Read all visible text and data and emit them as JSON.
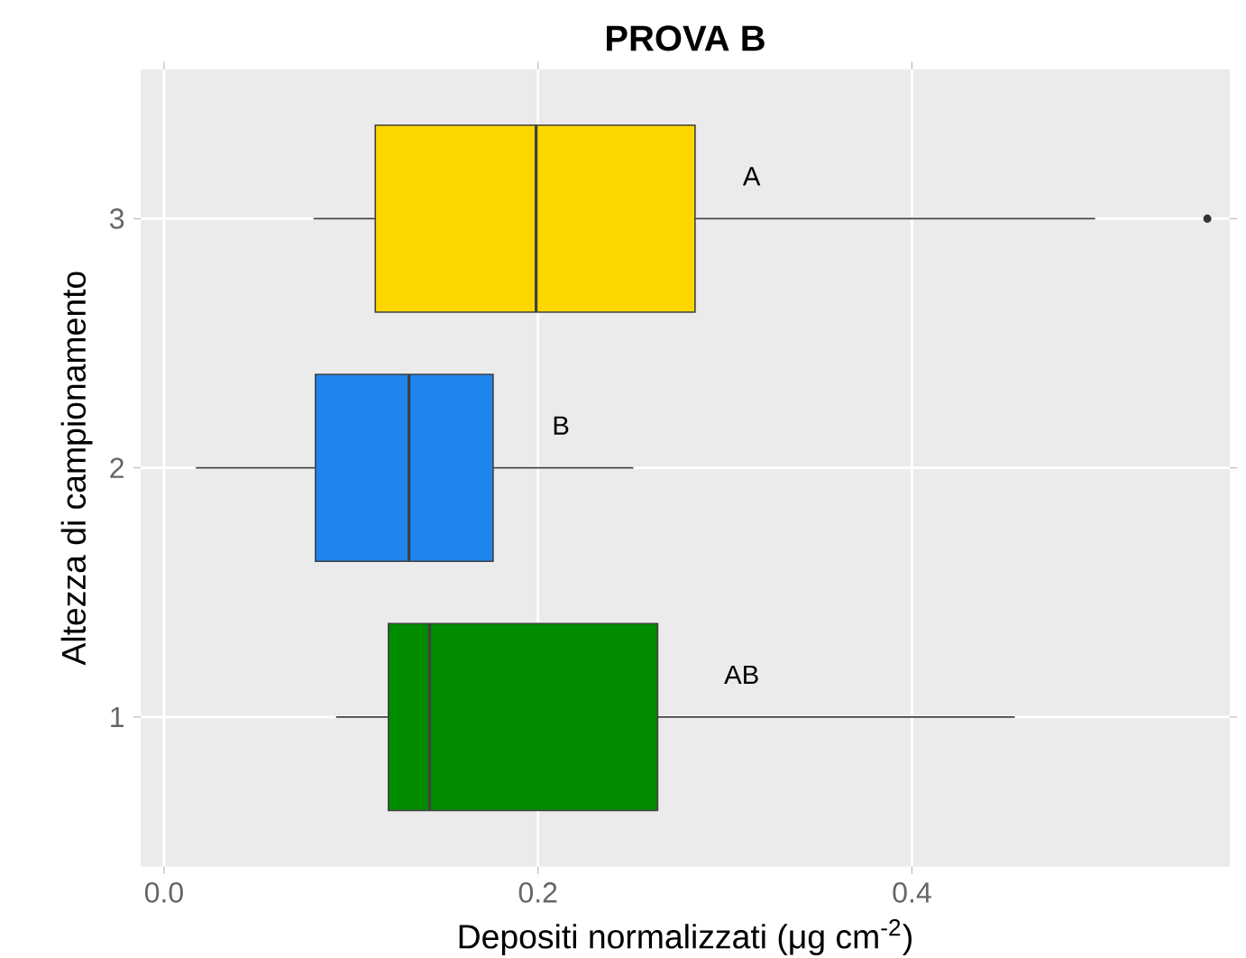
{
  "chart_data": {
    "type": "box",
    "orientation": "horizontal",
    "title": "**PROVA B**",
    "xlabel": "Depositi normalizzati  (μg cm$^{-2}$)",
    "ylabel": "Altezza di campionamento",
    "categories": [
      "3",
      "2",
      "1"
    ],
    "colors": [
      "#ffd700",
      "#1e85ee",
      "#008b00"
    ],
    "boxes": [
      {
        "low": 0.08,
        "q1": 0.113,
        "median": 0.199,
        "q3": 0.284,
        "high": 0.498,
        "outliers": [
          0.558
        ]
      },
      {
        "low": 0.017,
        "q1": 0.081,
        "median": 0.131,
        "q3": 0.176,
        "high": 0.251
      },
      {
        "low": 0.092,
        "q1": 0.12,
        "median": 0.142,
        "q3": 0.264,
        "high": 0.455
      }
    ],
    "xlim": [
      -0.0125,
      0.57
    ],
    "xticks": [
      {
        "value": 0,
        "label": "0.0"
      },
      0.2,
      0.4
    ],
    "grid": true,
    "annotations": [
      {
        "text": "A",
        "x": 0.305,
        "y": "3"
      },
      {
        "text": "B",
        "x": 0.203,
        "y": "2"
      },
      {
        "text": "AB",
        "x": 0.295,
        "y": "1"
      }
    ]
  }
}
